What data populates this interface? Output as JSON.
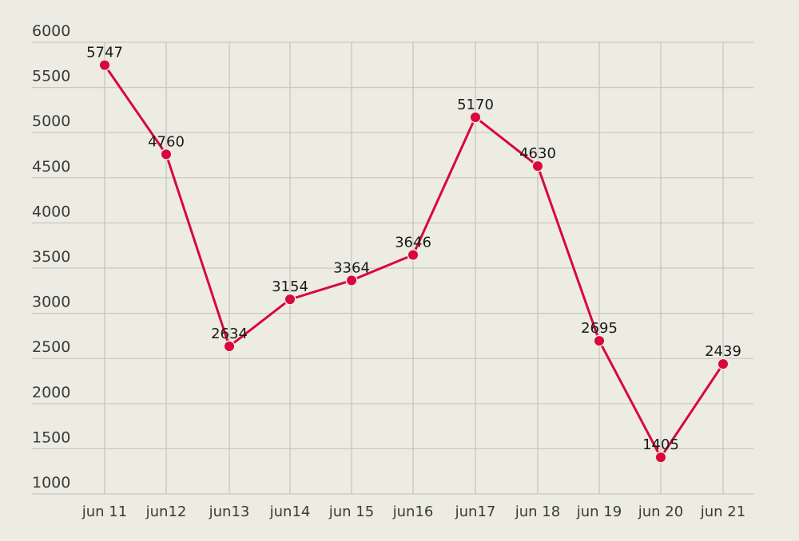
{
  "chart_data": {
    "type": "line",
    "title": "",
    "xlabel": "",
    "ylabel": "",
    "categories": [
      "jun 11",
      "jun12",
      "jun13",
      "jun14",
      "jun 15",
      "jun16",
      "jun17",
      "jun 18",
      "jun 19",
      "jun 20",
      "jun 21"
    ],
    "series": [
      {
        "name": "values",
        "color": "#d9083c",
        "values": [
          5747,
          4760,
          2634,
          3154,
          3364,
          3646,
          5170,
          4630,
          2695,
          1405,
          2439
        ],
        "labels": [
          "5747",
          "4760",
          "2634",
          "3154",
          "3364",
          "3646",
          "5170",
          "4630",
          "2695",
          "1405",
          "2439"
        ]
      }
    ],
    "ylim": [
      1000,
      6000
    ],
    "yticks": [
      1000,
      1500,
      2000,
      2500,
      3000,
      3500,
      4000,
      4500,
      5000,
      5500,
      6000
    ],
    "ytick_labels": [
      "1000",
      "1500",
      "2000",
      "2500",
      "3000",
      "3500",
      "4000",
      "4500",
      "5000",
      "5500",
      "6000"
    ],
    "grid": true,
    "legend": "none",
    "data_labels": true,
    "background": "#edece3"
  }
}
